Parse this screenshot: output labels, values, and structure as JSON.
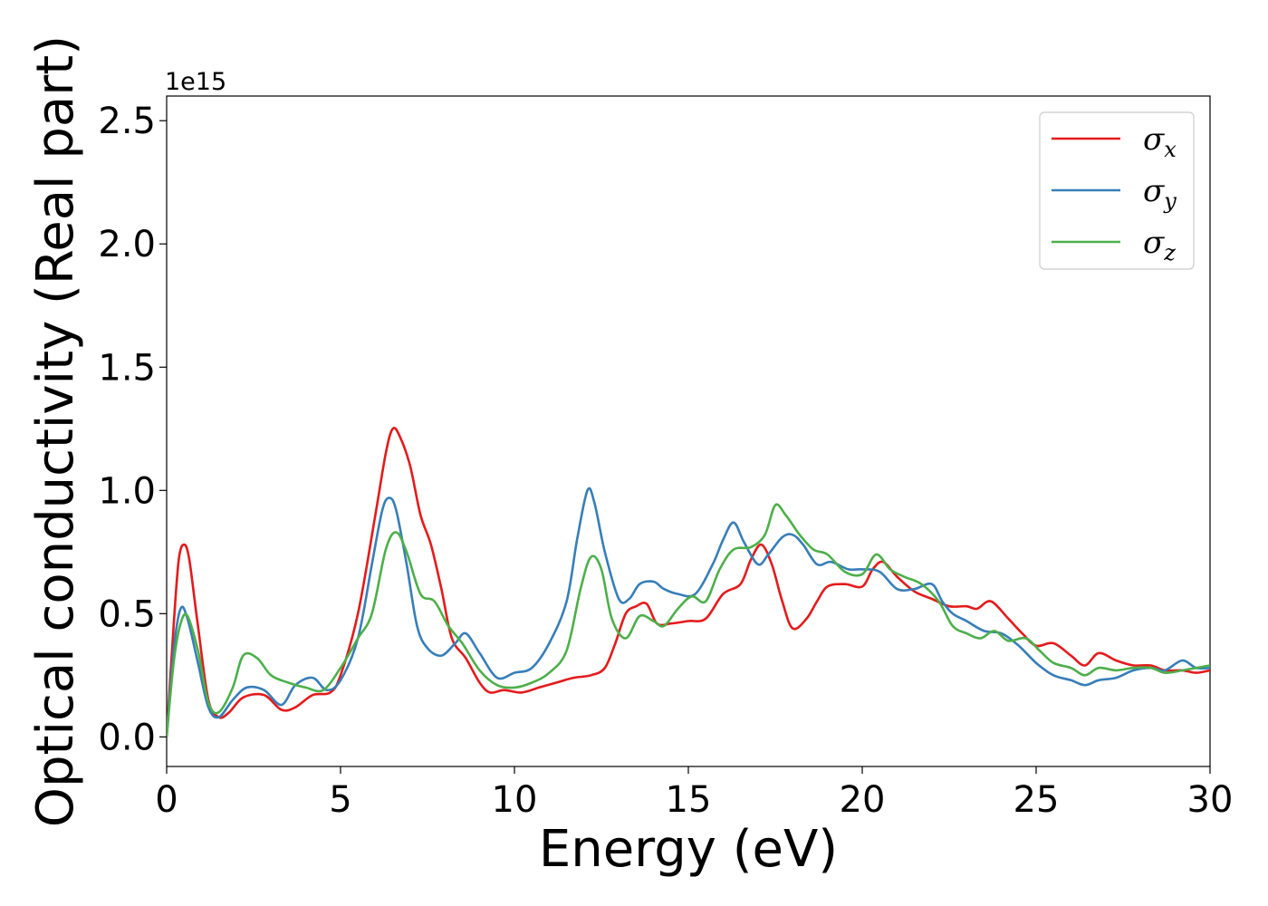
{
  "chart_data": {
    "type": "line",
    "xlabel": "Energy (eV)",
    "ylabel": "Optical conductivity (Real part)",
    "y_offset_label": "1e15",
    "xlim": [
      0,
      30
    ],
    "ylim": [
      -0.12,
      2.6
    ],
    "x_ticks": [
      0,
      5,
      10,
      15,
      20,
      25,
      30
    ],
    "y_ticks": [
      0.0,
      0.5,
      1.0,
      1.5,
      2.0,
      2.5
    ],
    "x_tick_labels": [
      "0",
      "5",
      "10",
      "15",
      "20",
      "25",
      "30"
    ],
    "y_tick_labels": [
      "0.0",
      "0.5",
      "1.0",
      "1.5",
      "2.0",
      "2.5"
    ],
    "grid": false,
    "legend_position": "top-right",
    "series": [
      {
        "name": "σx",
        "base": "σ",
        "sub": "x",
        "color": "#e41a1c",
        "points": [
          [
            0,
            0.0
          ],
          [
            0.2,
            0.45
          ],
          [
            0.35,
            0.72
          ],
          [
            0.5,
            0.78
          ],
          [
            0.65,
            0.72
          ],
          [
            0.9,
            0.45
          ],
          [
            1.2,
            0.15
          ],
          [
            1.5,
            0.08
          ],
          [
            1.8,
            0.1
          ],
          [
            2.2,
            0.16
          ],
          [
            2.8,
            0.17
          ],
          [
            3.3,
            0.11
          ],
          [
            3.7,
            0.12
          ],
          [
            4.2,
            0.17
          ],
          [
            4.7,
            0.18
          ],
          [
            5.0,
            0.25
          ],
          [
            5.5,
            0.5
          ],
          [
            6.0,
            0.9
          ],
          [
            6.3,
            1.15
          ],
          [
            6.5,
            1.25
          ],
          [
            6.7,
            1.22
          ],
          [
            7.0,
            1.1
          ],
          [
            7.3,
            0.9
          ],
          [
            7.6,
            0.78
          ],
          [
            7.9,
            0.6
          ],
          [
            8.2,
            0.4
          ],
          [
            8.6,
            0.32
          ],
          [
            9.0,
            0.22
          ],
          [
            9.3,
            0.18
          ],
          [
            9.7,
            0.19
          ],
          [
            10.2,
            0.18
          ],
          [
            10.7,
            0.2
          ],
          [
            11.2,
            0.22
          ],
          [
            11.7,
            0.24
          ],
          [
            12.2,
            0.25
          ],
          [
            12.6,
            0.28
          ],
          [
            12.9,
            0.38
          ],
          [
            13.2,
            0.5
          ],
          [
            13.5,
            0.53
          ],
          [
            13.8,
            0.54
          ],
          [
            14.1,
            0.46
          ],
          [
            14.5,
            0.46
          ],
          [
            15.0,
            0.47
          ],
          [
            15.5,
            0.48
          ],
          [
            16.0,
            0.58
          ],
          [
            16.5,
            0.62
          ],
          [
            16.8,
            0.72
          ],
          [
            17.1,
            0.78
          ],
          [
            17.4,
            0.7
          ],
          [
            17.7,
            0.55
          ],
          [
            18.0,
            0.44
          ],
          [
            18.4,
            0.48
          ],
          [
            18.7,
            0.55
          ],
          [
            19.0,
            0.61
          ],
          [
            19.5,
            0.62
          ],
          [
            20.0,
            0.61
          ],
          [
            20.3,
            0.68
          ],
          [
            20.6,
            0.71
          ],
          [
            21.0,
            0.65
          ],
          [
            21.5,
            0.59
          ],
          [
            22.0,
            0.56
          ],
          [
            22.5,
            0.53
          ],
          [
            23.0,
            0.53
          ],
          [
            23.3,
            0.52
          ],
          [
            23.7,
            0.55
          ],
          [
            24.2,
            0.48
          ],
          [
            24.6,
            0.42
          ],
          [
            25.0,
            0.37
          ],
          [
            25.5,
            0.38
          ],
          [
            26.0,
            0.33
          ],
          [
            26.4,
            0.29
          ],
          [
            26.8,
            0.34
          ],
          [
            27.3,
            0.31
          ],
          [
            27.8,
            0.29
          ],
          [
            28.3,
            0.29
          ],
          [
            28.7,
            0.27
          ],
          [
            29.2,
            0.27
          ],
          [
            29.6,
            0.26
          ],
          [
            30.0,
            0.27
          ]
        ]
      },
      {
        "name": "σy",
        "base": "σ",
        "sub": "y",
        "color": "#377eb8",
        "points": [
          [
            0,
            0.0
          ],
          [
            0.2,
            0.35
          ],
          [
            0.4,
            0.52
          ],
          [
            0.6,
            0.48
          ],
          [
            0.9,
            0.3
          ],
          [
            1.2,
            0.12
          ],
          [
            1.5,
            0.08
          ],
          [
            1.9,
            0.15
          ],
          [
            2.3,
            0.2
          ],
          [
            2.8,
            0.19
          ],
          [
            3.3,
            0.13
          ],
          [
            3.7,
            0.21
          ],
          [
            4.2,
            0.24
          ],
          [
            4.6,
            0.19
          ],
          [
            5.0,
            0.23
          ],
          [
            5.5,
            0.4
          ],
          [
            5.9,
            0.7
          ],
          [
            6.2,
            0.92
          ],
          [
            6.4,
            0.97
          ],
          [
            6.6,
            0.92
          ],
          [
            6.9,
            0.7
          ],
          [
            7.2,
            0.45
          ],
          [
            7.5,
            0.36
          ],
          [
            7.9,
            0.33
          ],
          [
            8.3,
            0.38
          ],
          [
            8.6,
            0.42
          ],
          [
            9.0,
            0.34
          ],
          [
            9.5,
            0.24
          ],
          [
            10.0,
            0.26
          ],
          [
            10.5,
            0.28
          ],
          [
            11.0,
            0.38
          ],
          [
            11.5,
            0.55
          ],
          [
            11.8,
            0.8
          ],
          [
            12.1,
            1.0
          ],
          [
            12.3,
            0.95
          ],
          [
            12.6,
            0.75
          ],
          [
            13.0,
            0.56
          ],
          [
            13.3,
            0.56
          ],
          [
            13.6,
            0.62
          ],
          [
            14.0,
            0.63
          ],
          [
            14.3,
            0.6
          ],
          [
            14.7,
            0.58
          ],
          [
            15.2,
            0.58
          ],
          [
            15.7,
            0.7
          ],
          [
            16.0,
            0.8
          ],
          [
            16.3,
            0.87
          ],
          [
            16.6,
            0.79
          ],
          [
            17.0,
            0.7
          ],
          [
            17.3,
            0.74
          ],
          [
            17.7,
            0.81
          ],
          [
            18.0,
            0.82
          ],
          [
            18.3,
            0.78
          ],
          [
            18.7,
            0.7
          ],
          [
            19.1,
            0.71
          ],
          [
            19.6,
            0.68
          ],
          [
            20.0,
            0.68
          ],
          [
            20.5,
            0.67
          ],
          [
            21.0,
            0.6
          ],
          [
            21.5,
            0.6
          ],
          [
            22.0,
            0.62
          ],
          [
            22.3,
            0.55
          ],
          [
            22.6,
            0.5
          ],
          [
            23.0,
            0.47
          ],
          [
            23.5,
            0.43
          ],
          [
            24.0,
            0.42
          ],
          [
            24.5,
            0.37
          ],
          [
            25.0,
            0.3
          ],
          [
            25.5,
            0.25
          ],
          [
            26.0,
            0.23
          ],
          [
            26.4,
            0.21
          ],
          [
            26.8,
            0.23
          ],
          [
            27.3,
            0.24
          ],
          [
            27.8,
            0.27
          ],
          [
            28.3,
            0.28
          ],
          [
            28.7,
            0.27
          ],
          [
            29.2,
            0.31
          ],
          [
            29.6,
            0.28
          ],
          [
            30.0,
            0.28
          ]
        ]
      },
      {
        "name": "σz",
        "base": "σ",
        "sub": "z",
        "color": "#4daf4a",
        "points": [
          [
            0,
            0.0
          ],
          [
            0.2,
            0.3
          ],
          [
            0.4,
            0.46
          ],
          [
            0.6,
            0.49
          ],
          [
            0.9,
            0.35
          ],
          [
            1.2,
            0.14
          ],
          [
            1.5,
            0.1
          ],
          [
            1.9,
            0.2
          ],
          [
            2.2,
            0.33
          ],
          [
            2.6,
            0.32
          ],
          [
            3.0,
            0.25
          ],
          [
            3.5,
            0.22
          ],
          [
            4.0,
            0.2
          ],
          [
            4.5,
            0.19
          ],
          [
            5.0,
            0.28
          ],
          [
            5.5,
            0.4
          ],
          [
            5.9,
            0.5
          ],
          [
            6.3,
            0.76
          ],
          [
            6.6,
            0.83
          ],
          [
            6.9,
            0.75
          ],
          [
            7.3,
            0.58
          ],
          [
            7.7,
            0.55
          ],
          [
            8.1,
            0.45
          ],
          [
            8.5,
            0.38
          ],
          [
            9.0,
            0.27
          ],
          [
            9.5,
            0.21
          ],
          [
            10.0,
            0.2
          ],
          [
            10.5,
            0.22
          ],
          [
            11.0,
            0.26
          ],
          [
            11.5,
            0.35
          ],
          [
            11.9,
            0.6
          ],
          [
            12.2,
            0.73
          ],
          [
            12.5,
            0.68
          ],
          [
            12.8,
            0.48
          ],
          [
            13.2,
            0.4
          ],
          [
            13.6,
            0.49
          ],
          [
            14.0,
            0.47
          ],
          [
            14.3,
            0.45
          ],
          [
            14.7,
            0.52
          ],
          [
            15.1,
            0.57
          ],
          [
            15.5,
            0.55
          ],
          [
            15.9,
            0.68
          ],
          [
            16.3,
            0.76
          ],
          [
            16.8,
            0.77
          ],
          [
            17.2,
            0.82
          ],
          [
            17.5,
            0.94
          ],
          [
            17.8,
            0.9
          ],
          [
            18.2,
            0.82
          ],
          [
            18.6,
            0.76
          ],
          [
            19.0,
            0.74
          ],
          [
            19.5,
            0.67
          ],
          [
            20.0,
            0.66
          ],
          [
            20.4,
            0.74
          ],
          [
            20.8,
            0.68
          ],
          [
            21.2,
            0.65
          ],
          [
            21.7,
            0.62
          ],
          [
            22.2,
            0.55
          ],
          [
            22.6,
            0.45
          ],
          [
            23.0,
            0.42
          ],
          [
            23.4,
            0.4
          ],
          [
            23.8,
            0.43
          ],
          [
            24.2,
            0.39
          ],
          [
            24.7,
            0.4
          ],
          [
            25.1,
            0.35
          ],
          [
            25.5,
            0.3
          ],
          [
            26.0,
            0.28
          ],
          [
            26.4,
            0.25
          ],
          [
            26.8,
            0.28
          ],
          [
            27.3,
            0.27
          ],
          [
            27.8,
            0.28
          ],
          [
            28.3,
            0.28
          ],
          [
            28.7,
            0.26
          ],
          [
            29.2,
            0.27
          ],
          [
            29.6,
            0.28
          ],
          [
            30.0,
            0.29
          ]
        ]
      }
    ]
  }
}
